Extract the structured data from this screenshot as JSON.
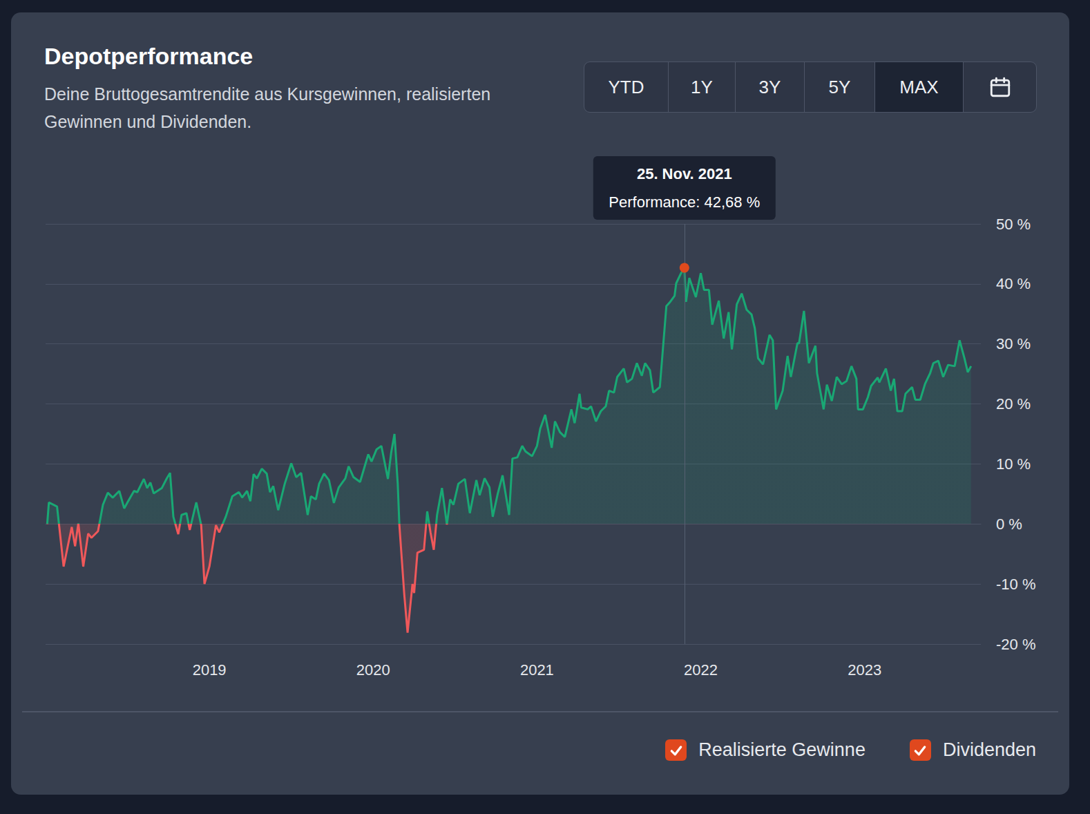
{
  "header": {
    "title": "Depotperformance",
    "subtitle": "Deine Bruttogesamtrendite aus Kursgewinnen, realisierten Gewinnen und Dividenden."
  },
  "range_buttons": {
    "options": [
      "YTD",
      "1Y",
      "3Y",
      "5Y",
      "MAX"
    ],
    "active": "MAX"
  },
  "toggles": [
    {
      "label": "Realisierte Gewinne",
      "checked": true
    },
    {
      "label": "Dividenden",
      "checked": true
    }
  ],
  "chart_data": {
    "type": "area",
    "color": "#19a874",
    "grid": true,
    "xlim": [
      2018.0,
      2023.71
    ],
    "xticks": [
      2019,
      2020,
      2021,
      2022,
      2023
    ],
    "ylim": [
      -20,
      50
    ],
    "yticks": [
      {
        "value": -20,
        "label": "-20 %"
      },
      {
        "value": -10,
        "label": "-10 %"
      },
      {
        "value": 0,
        "label": "0 %"
      },
      {
        "value": 10,
        "label": "10 %"
      },
      {
        "value": 20,
        "label": "20 %"
      },
      {
        "value": 30,
        "label": "30 %"
      },
      {
        "value": 40,
        "label": "40 %"
      },
      {
        "value": 50,
        "label": "50 %"
      }
    ],
    "x": [
      2018.01,
      2018.02,
      2018.07,
      2018.11,
      2018.14,
      2018.16,
      2018.18,
      2018.2,
      2018.23,
      2018.26,
      2018.28,
      2018.32,
      2018.35,
      2018.38,
      2018.41,
      2018.45,
      2018.48,
      2018.5,
      2018.54,
      2018.56,
      2018.6,
      2018.62,
      2018.64,
      2018.66,
      2018.71,
      2018.74,
      2018.76,
      2018.78,
      2018.81,
      2018.83,
      2018.86,
      2018.88,
      2018.92,
      2018.95,
      2018.97,
      2019.0,
      2019.04,
      2019.06,
      2019.1,
      2019.14,
      2019.18,
      2019.2,
      2019.23,
      2019.25,
      2019.27,
      2019.29,
      2019.32,
      2019.35,
      2019.37,
      2019.39,
      2019.42,
      2019.46,
      2019.5,
      2019.53,
      2019.56,
      2019.6,
      2019.62,
      2019.65,
      2019.67,
      2019.7,
      2019.73,
      2019.76,
      2019.79,
      2019.83,
      2019.85,
      2019.88,
      2019.92,
      2019.97,
      2019.99,
      2020.02,
      2020.05,
      2020.09,
      2020.11,
      2020.13,
      2020.15,
      2020.16,
      2020.19,
      2020.21,
      2020.24,
      2020.25,
      2020.27,
      2020.31,
      2020.33,
      2020.35,
      2020.37,
      2020.39,
      2020.42,
      2020.45,
      2020.47,
      2020.49,
      2020.52,
      2020.56,
      2020.59,
      2020.63,
      2020.65,
      2020.68,
      2020.71,
      2020.73,
      2020.76,
      2020.79,
      2020.83,
      2020.85,
      2020.88,
      2020.91,
      2020.93,
      2020.97,
      2021.0,
      2021.02,
      2021.05,
      2021.09,
      2021.11,
      2021.14,
      2021.17,
      2021.21,
      2021.23,
      2021.26,
      2021.27,
      2021.31,
      2021.33,
      2021.36,
      2021.39,
      2021.42,
      2021.44,
      2021.47,
      2021.49,
      2021.53,
      2021.55,
      2021.58,
      2021.61,
      2021.64,
      2021.66,
      2021.69,
      2021.71,
      2021.75,
      2021.79,
      2021.81,
      2021.84,
      2021.85,
      2021.88,
      2021.9,
      2021.91,
      2021.93,
      2021.97,
      2022.0,
      2022.02,
      2022.05,
      2022.07,
      2022.11,
      2022.14,
      2022.17,
      2022.19,
      2022.22,
      2022.25,
      2022.28,
      2022.31,
      2022.33,
      2022.35,
      2022.38,
      2022.42,
      2022.44,
      2022.46,
      2022.5,
      2022.53,
      2022.55,
      2022.59,
      2022.6,
      2022.63,
      2022.66,
      2022.7,
      2022.71,
      2022.75,
      2022.77,
      2022.8,
      2022.83,
      2022.86,
      2022.89,
      2022.92,
      2022.95,
      2022.96,
      2022.99,
      2023.02,
      2023.04,
      2023.08,
      2023.09,
      2023.13,
      2023.16,
      2023.18,
      2023.2,
      2023.23,
      2023.25,
      2023.29,
      2023.31,
      2023.34,
      2023.37,
      2023.4,
      2023.42,
      2023.45,
      2023.48,
      2023.51,
      2023.55,
      2023.58,
      2023.61,
      2023.63,
      2023.65
    ],
    "values": [
      0.0,
      3.6,
      2.9,
      -7.1,
      -3.1,
      -0.5,
      -3.7,
      0.1,
      -7.1,
      -1.6,
      -2.3,
      -1.2,
      3.2,
      5.2,
      4.4,
      5.5,
      2.6,
      3.6,
      5.5,
      5.3,
      7.5,
      6.0,
      6.9,
      5.1,
      6.0,
      7.6,
      8.5,
      1.2,
      -1.7,
      1.5,
      1.8,
      -1.0,
      3.6,
      -0.2,
      -10.0,
      -7.1,
      -0.2,
      -1.4,
      1.2,
      4.6,
      5.3,
      4.4,
      5.5,
      3.8,
      8.3,
      7.6,
      9.2,
      8.4,
      5.3,
      6.3,
      2.3,
      6.7,
      10.1,
      7.8,
      8.5,
      1.5,
      4.6,
      4.1,
      6.7,
      8.4,
      7.3,
      3.5,
      6.1,
      7.6,
      9.6,
      7.8,
      7.0,
      11.6,
      10.4,
      12.4,
      13.0,
      7.5,
      11.9,
      15.0,
      6.7,
      -0.2,
      -11.8,
      -18.1,
      -10.0,
      -11.5,
      -4.8,
      -4.3,
      2.1,
      -1.4,
      -4.3,
      1.5,
      6.0,
      -0.1,
      4.1,
      3.2,
      6.7,
      7.5,
      1.8,
      7.3,
      4.8,
      7.6,
      6.1,
      1.2,
      5.0,
      8.1,
      1.5,
      10.9,
      11.1,
      13.0,
      12.1,
      11.3,
      13.0,
      15.9,
      18.2,
      12.7,
      17.1,
      15.3,
      14.5,
      19.1,
      16.8,
      21.7,
      19.4,
      19.1,
      19.6,
      17.1,
      18.8,
      19.6,
      22.2,
      21.9,
      24.5,
      25.9,
      23.6,
      24.2,
      26.8,
      24.7,
      26.8,
      25.6,
      21.9,
      22.8,
      36.3,
      36.9,
      38.0,
      40.1,
      41.8,
      42.68,
      37.0,
      41.0,
      37.8,
      41.8,
      39.0,
      39.0,
      33.2,
      37.2,
      30.9,
      35.3,
      29.1,
      36.6,
      38.4,
      35.7,
      34.9,
      32.6,
      27.6,
      26.6,
      31.5,
      30.6,
      19.1,
      22.2,
      28.0,
      24.5,
      30.1,
      30.1,
      35.5,
      26.8,
      29.7,
      25.1,
      19.1,
      23.2,
      20.5,
      24.5,
      23.3,
      23.8,
      26.3,
      24.2,
      19.1,
      19.1,
      21.1,
      23.0,
      24.4,
      23.6,
      25.9,
      22.2,
      24.2,
      18.8,
      18.8,
      21.7,
      22.8,
      20.7,
      20.7,
      23.4,
      25.1,
      26.8,
      27.2,
      24.5,
      26.5,
      26.3,
      30.6,
      27.6,
      25.3,
      26.3
    ],
    "annotations": [
      {
        "x": 2021.9,
        "y": 42.68,
        "title": "25. Nov. 2021",
        "text": "Performance: 42,68 %"
      }
    ]
  }
}
